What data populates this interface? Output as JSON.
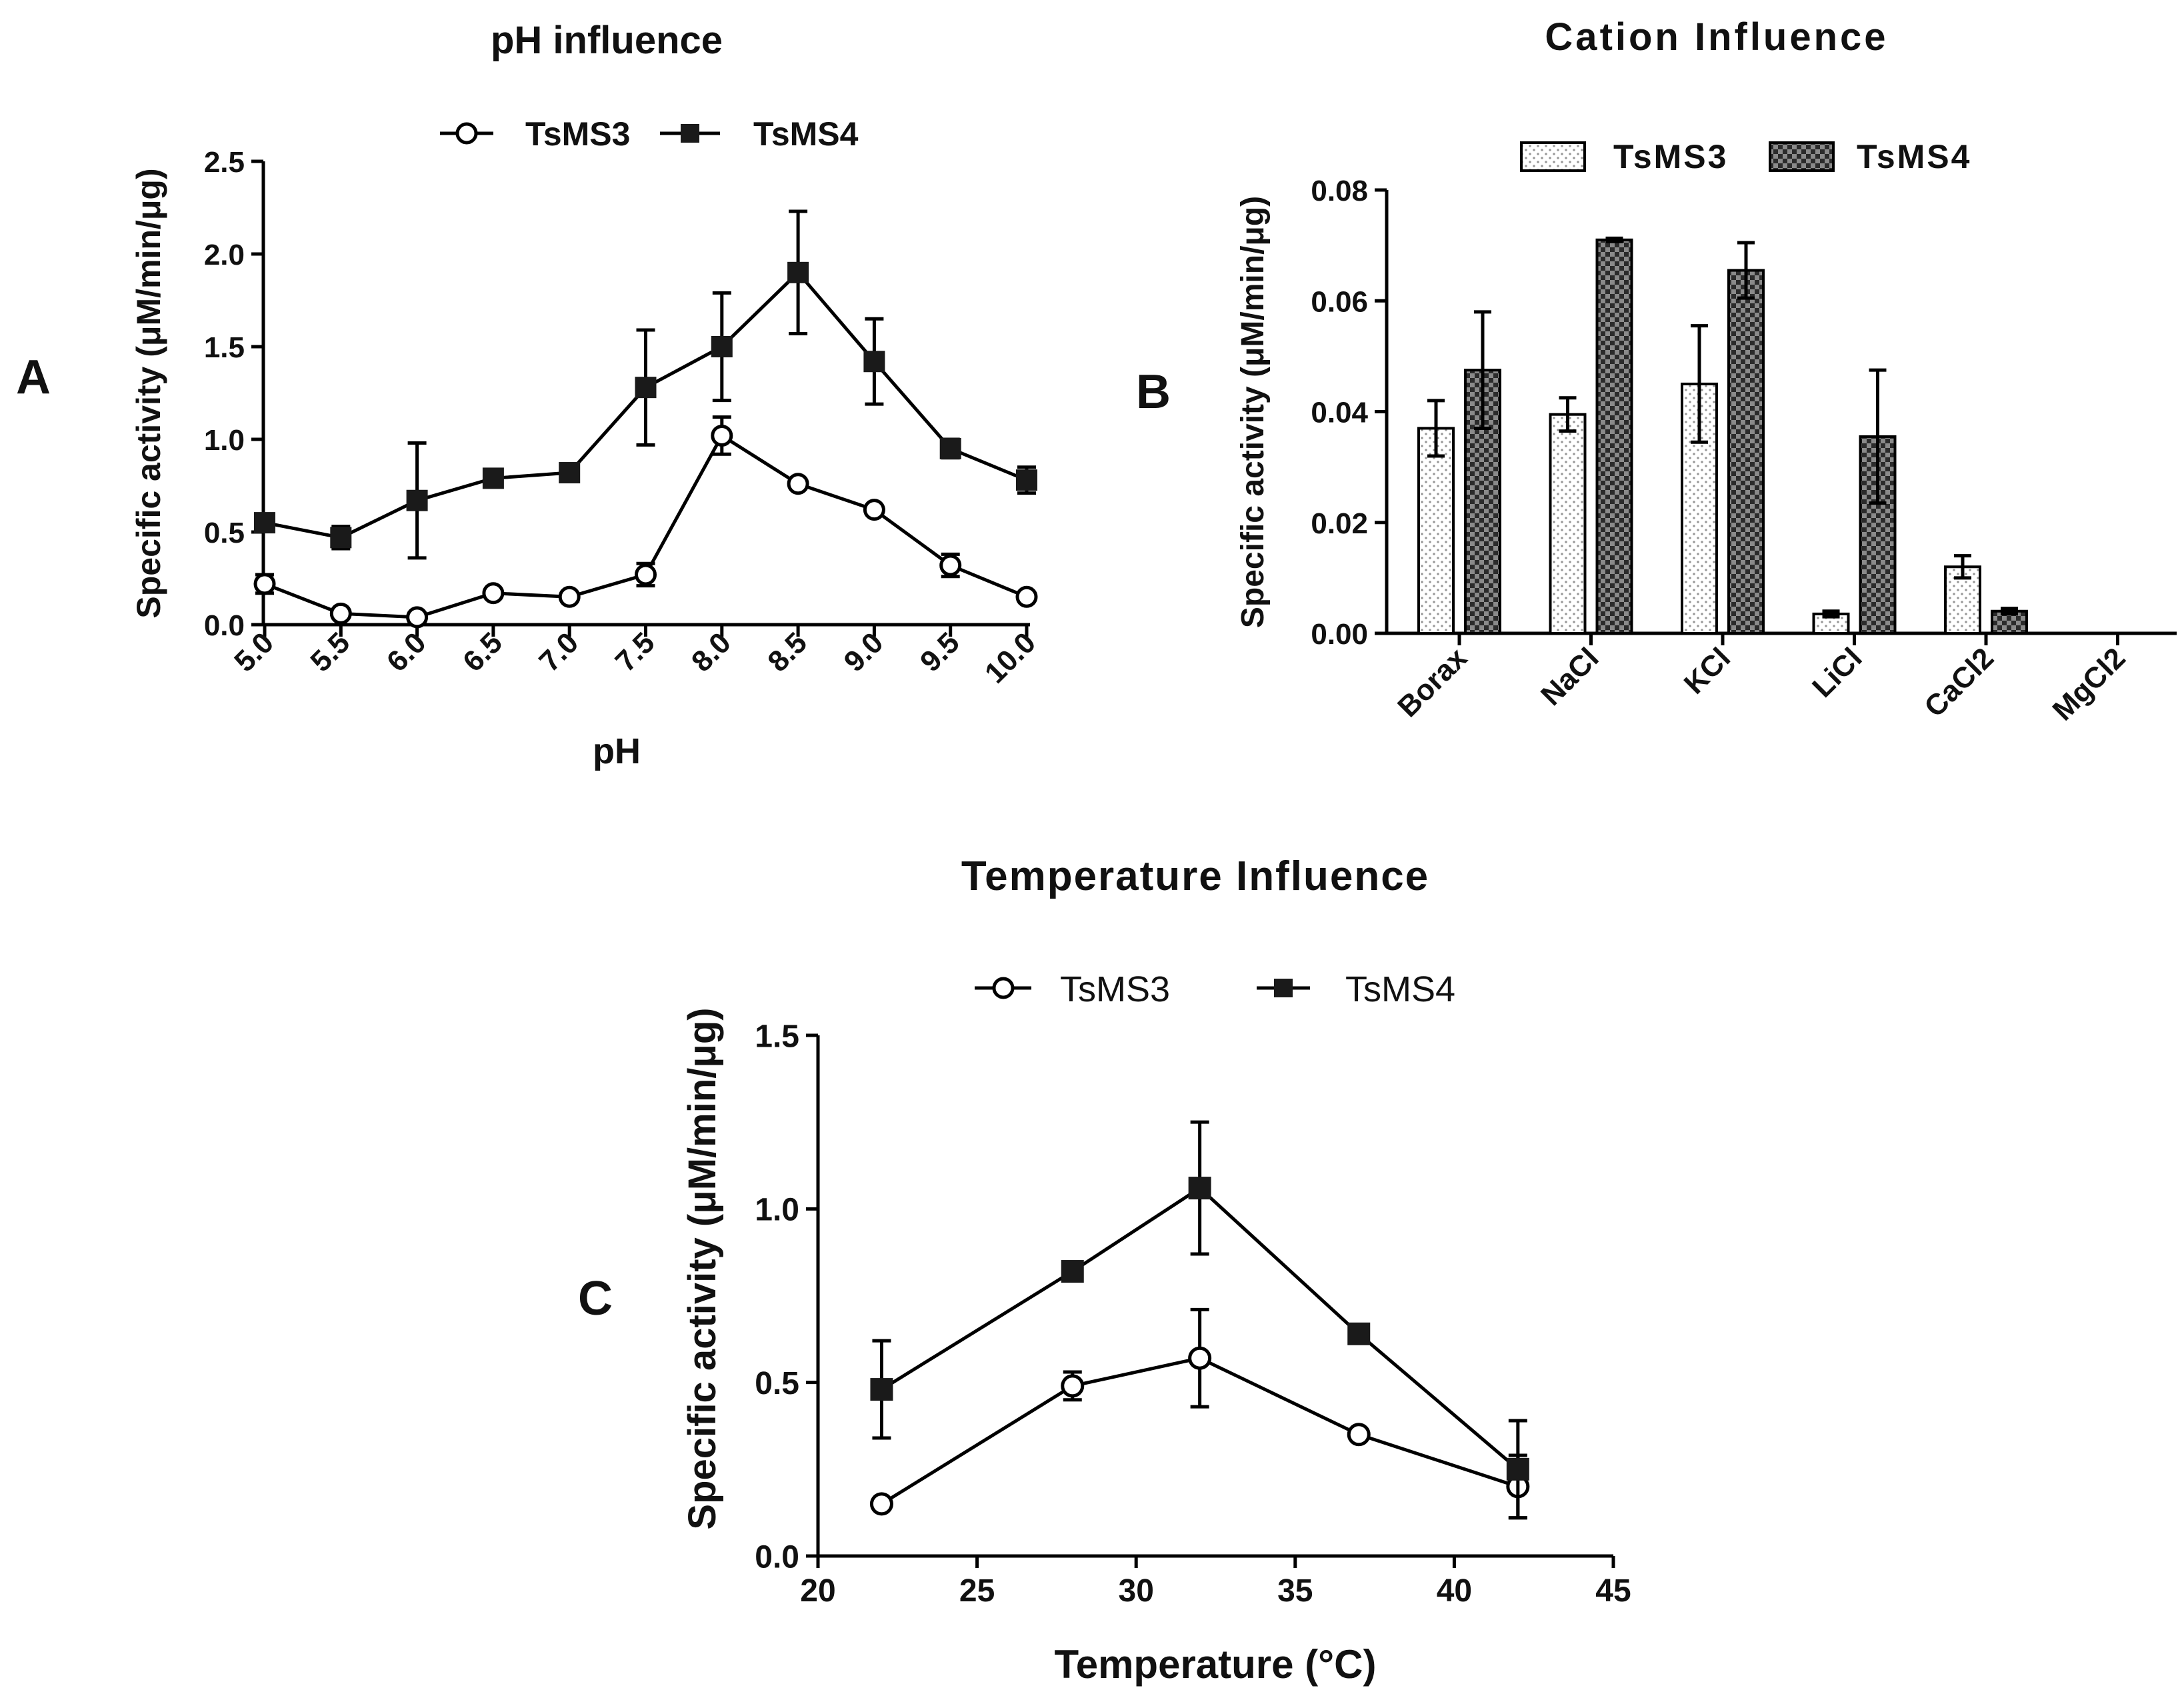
{
  "figure": {
    "panel_labels": [
      "A",
      "B",
      "C"
    ]
  },
  "colors": {
    "axis": "#000000",
    "tsms3_fill": "#ffffff",
    "tsms4_fill": "#1a1a1a",
    "bar3_dot": "#9a9a9a",
    "bar4_dark": "#2b2b2b",
    "bar4_light": "#8a8a8a"
  },
  "chart_data": [
    {
      "id": "A",
      "type": "line",
      "title": "pH influence",
      "xlabel": "pH",
      "ylabel": "Specific activity (μM/min/μg)",
      "xlim": [
        5.0,
        10.0
      ],
      "ylim": [
        0.0,
        2.5
      ],
      "xticks": [
        5.0,
        5.5,
        6.0,
        6.5,
        7.0,
        7.5,
        8.0,
        8.5,
        9.0,
        9.5,
        10.0
      ],
      "xtick_labels": [
        "5.0",
        "5.5",
        "6.0",
        "6.5",
        "7.0",
        "7.5",
        "8.0",
        "8.5",
        "9.0",
        "9.5",
        "10.0"
      ],
      "yticks": [
        0.0,
        0.5,
        1.0,
        1.5,
        2.0,
        2.5
      ],
      "ytick_labels": [
        "0.0",
        "0.5",
        "1.0",
        "1.5",
        "2.0",
        "2.5"
      ],
      "legend": [
        "TsMS3",
        "TsMS4"
      ],
      "series": [
        {
          "name": "TsMS3",
          "marker": "open-circle",
          "x": [
            5.0,
            5.5,
            6.0,
            6.5,
            7.0,
            7.5,
            8.0,
            8.5,
            9.0,
            9.5,
            10.0
          ],
          "y": [
            0.22,
            0.06,
            0.04,
            0.17,
            0.15,
            0.27,
            1.02,
            0.76,
            0.62,
            0.32,
            0.15
          ],
          "err": [
            0.05,
            0.01,
            0.01,
            0.02,
            0.02,
            0.06,
            0.1,
            0.02,
            0.02,
            0.06,
            0.02
          ]
        },
        {
          "name": "TsMS4",
          "marker": "filled-square",
          "x": [
            5.0,
            5.5,
            6.0,
            6.5,
            7.0,
            7.5,
            8.0,
            8.5,
            9.0,
            9.5,
            10.0
          ],
          "y": [
            0.55,
            0.47,
            0.67,
            0.79,
            0.82,
            1.28,
            1.5,
            1.9,
            1.42,
            0.95,
            0.78
          ],
          "err": [
            0.03,
            0.06,
            0.31,
            0.02,
            0.02,
            0.31,
            0.29,
            0.33,
            0.23,
            0.05,
            0.07
          ]
        }
      ]
    },
    {
      "id": "B",
      "type": "bar",
      "title": "Cation Influence",
      "xlabel": "",
      "ylabel": "Specific activity (μM/min/μg)",
      "ylim": [
        0.0,
        0.08
      ],
      "yticks": [
        0.0,
        0.02,
        0.04,
        0.06,
        0.08
      ],
      "ytick_labels": [
        "0.00",
        "0.02",
        "0.04",
        "0.06",
        "0.08"
      ],
      "categories": [
        "Borax",
        "NaCl",
        "KCl",
        "LiCl",
        "CaCl2",
        "MgCl2"
      ],
      "legend": [
        "TsMS3",
        "TsMS4"
      ],
      "series": [
        {
          "name": "TsMS3",
          "pattern": "dotted",
          "values": [
            0.037,
            0.0395,
            0.045,
            0.0035,
            0.012,
            0.0
          ],
          "err": [
            0.005,
            0.003,
            0.0105,
            0.0005,
            0.002,
            0.0
          ]
        },
        {
          "name": "TsMS4",
          "pattern": "checkered",
          "values": [
            0.0475,
            0.071,
            0.0655,
            0.0355,
            0.004,
            0.0
          ],
          "err": [
            0.0105,
            0.0003,
            0.005,
            0.012,
            0.0005,
            0.0
          ]
        }
      ]
    },
    {
      "id": "C",
      "type": "line",
      "title": "Temperature Influence",
      "xlabel": "Temperature (°C)",
      "ylabel": "Specific activity (μM/min/μg)",
      "xlim": [
        20,
        45
      ],
      "ylim": [
        0.0,
        1.5
      ],
      "xticks": [
        20,
        25,
        30,
        35,
        40,
        45
      ],
      "xtick_labels": [
        "20",
        "25",
        "30",
        "35",
        "40",
        "45"
      ],
      "yticks": [
        0.0,
        0.5,
        1.0,
        1.5
      ],
      "ytick_labels": [
        "0.0",
        "0.5",
        "1.0",
        "1.5"
      ],
      "legend": [
        "TsMS3",
        "TsMS4"
      ],
      "series": [
        {
          "name": "TsMS3",
          "marker": "open-circle",
          "x": [
            22,
            28,
            32,
            37,
            42
          ],
          "y": [
            0.15,
            0.49,
            0.57,
            0.35,
            0.2
          ],
          "err": [
            0.01,
            0.04,
            0.14,
            0.01,
            0.09
          ]
        },
        {
          "name": "TsMS4",
          "marker": "filled-square",
          "x": [
            22,
            28,
            32,
            37,
            42
          ],
          "y": [
            0.48,
            0.82,
            1.06,
            0.64,
            0.25
          ],
          "err": [
            0.14,
            0.01,
            0.19,
            0.01,
            0.14
          ]
        }
      ]
    }
  ]
}
